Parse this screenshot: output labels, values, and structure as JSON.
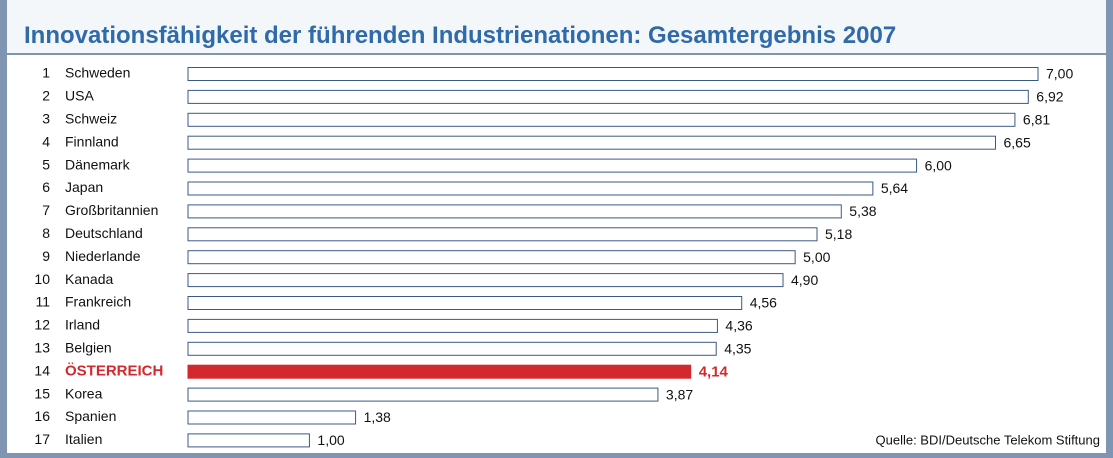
{
  "chart_data": {
    "type": "bar",
    "orientation": "horizontal",
    "title": "Innovationsfähigkeit der führenden Industrienationen: Gesamtergebnis 2007",
    "source": "Quelle: BDI/Deutsche Telekom Stiftung",
    "ranks": [
      1,
      2,
      3,
      4,
      5,
      6,
      7,
      8,
      9,
      10,
      11,
      12,
      13,
      14,
      15,
      16,
      17
    ],
    "categories": [
      "Schweden",
      "USA",
      "Schweiz",
      "Finnland",
      "Dänemark",
      "Japan",
      "Großbritannien",
      "Deutschland",
      "Niederlande",
      "Kanada",
      "Frankreich",
      "Irland",
      "Belgien",
      "ÖSTERREICH",
      "Korea",
      "Spanien",
      "Italien"
    ],
    "values": [
      7.0,
      6.92,
      6.81,
      6.65,
      6.0,
      5.64,
      5.38,
      5.18,
      5.0,
      4.9,
      4.56,
      4.36,
      4.35,
      4.14,
      3.87,
      1.38,
      1.0
    ],
    "value_labels": [
      "7,00",
      "6,92",
      "6,81",
      "6,65",
      "6,00",
      "5,64",
      "5,38",
      "5,18",
      "5,00",
      "4,90",
      "4,56",
      "4,36",
      "4,35",
      "4,14",
      "3,87",
      "1,38",
      "1,00"
    ],
    "xlim": [
      0,
      7
    ],
    "color": "#ffffff",
    "outline": "#3a5a86",
    "highlight": {
      "index": 13,
      "color": "#d3282e"
    }
  }
}
